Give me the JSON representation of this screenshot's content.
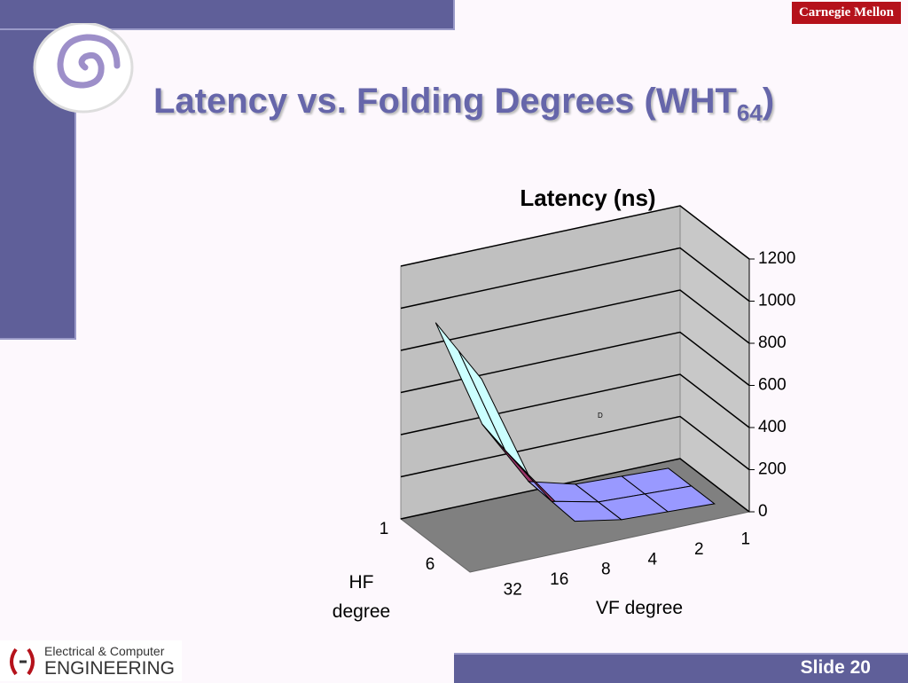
{
  "header": {
    "brand": "Carnegie Mellon",
    "title": "Latency vs. Folding Degrees (WHT",
    "title_subscript": "64",
    "title_end": ")"
  },
  "chart_data": {
    "type": "surface",
    "title": "Latency (ns)",
    "x_label": "VF degree",
    "z_label": "HF degree",
    "categories": [
      "32",
      "16",
      "8",
      "4",
      "2",
      "1"
    ],
    "series": [
      {
        "name": "1",
        "values": [
          950,
          420,
          100,
          40,
          30,
          20
        ]
      },
      {
        "name": null,
        "values": [
          900,
          380,
          90,
          40,
          30,
          20
        ]
      },
      {
        "name": "6",
        "values": [
          850,
          350,
          80,
          40,
          30,
          20
        ]
      }
    ],
    "ylim": [
      0,
      1200
    ],
    "yticks": [
      0,
      200,
      400,
      600,
      800,
      1000,
      1200
    ],
    "grid": true,
    "band_colors": [
      "#9999ff",
      "#993366",
      "#ffffcc",
      "#ccffff",
      "#660066",
      "#8080ff"
    ],
    "annotation": "D"
  },
  "footer": {
    "logo_line1": "Electrical & Computer",
    "logo_line2": "ENGINEERING",
    "slide": "Slide 20"
  }
}
